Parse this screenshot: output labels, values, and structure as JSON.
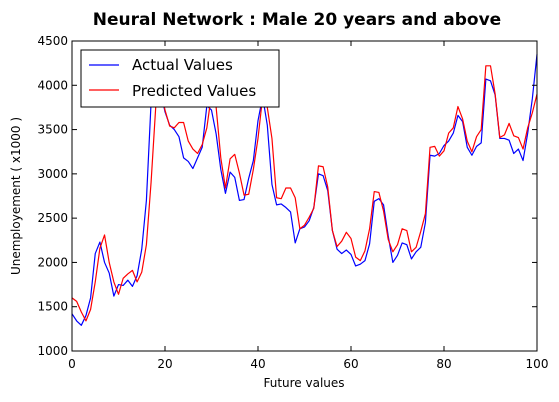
{
  "chart_data": {
    "type": "line",
    "title": "Neural Network : Male 20 years and above",
    "xlabel": "Future values",
    "ylabel": "Unemployement ( x1000 )",
    "xlim": [
      0,
      100
    ],
    "ylim": [
      1000,
      4500
    ],
    "x_ticks": [
      0,
      20,
      40,
      60,
      80,
      100
    ],
    "y_ticks": [
      1000,
      1500,
      2000,
      2500,
      3000,
      3500,
      4000,
      4500
    ],
    "x_tick_labels": [
      "0",
      "20",
      "40",
      "60",
      "80",
      "100"
    ],
    "y_tick_labels": [
      "1000",
      "1500",
      "2000",
      "2500",
      "3000",
      "3500",
      "4000",
      "4500"
    ],
    "grid": false,
    "legend_position": "top-left",
    "x": [
      0,
      1,
      2,
      3,
      4,
      5,
      6,
      7,
      8,
      9,
      10,
      11,
      12,
      13,
      14,
      15,
      16,
      17,
      18,
      19,
      20,
      21,
      22,
      23,
      24,
      25,
      26,
      27,
      28,
      29,
      30,
      31,
      32,
      33,
      34,
      35,
      36,
      37,
      38,
      39,
      40,
      41,
      42,
      43,
      44,
      45,
      46,
      47,
      48,
      49,
      50,
      51,
      52,
      53,
      54,
      55,
      56,
      57,
      58,
      59,
      60,
      61,
      62,
      63,
      64,
      65,
      66,
      67,
      68,
      69,
      70,
      71,
      72,
      73,
      74,
      75,
      76,
      77,
      78,
      79,
      80,
      81,
      82,
      83,
      84,
      85,
      86,
      87,
      88,
      89,
      90,
      91,
      92,
      93,
      94,
      95,
      96,
      97,
      98,
      99,
      100
    ],
    "series": [
      {
        "name": "Actual Values",
        "color": "#0000ff",
        "values": [
          1420,
          1340,
          1290,
          1400,
          1600,
          2100,
          2230,
          2000,
          1880,
          1620,
          1750,
          1740,
          1800,
          1730,
          1850,
          2150,
          2700,
          3800,
          4050,
          3950,
          3700,
          3550,
          3500,
          3420,
          3180,
          3140,
          3060,
          3180,
          3300,
          3770,
          3720,
          3450,
          3050,
          2780,
          3020,
          2960,
          2700,
          2710,
          2950,
          3150,
          3600,
          3870,
          3550,
          2880,
          2650,
          2660,
          2620,
          2570,
          2220,
          2380,
          2400,
          2470,
          2620,
          3000,
          2980,
          2810,
          2360,
          2150,
          2100,
          2140,
          2090,
          1960,
          1980,
          2020,
          2210,
          2690,
          2720,
          2650,
          2300,
          2000,
          2080,
          2220,
          2200,
          2040,
          2120,
          2170,
          2450,
          3210,
          3200,
          3230,
          3320,
          3370,
          3460,
          3660,
          3590,
          3300,
          3210,
          3310,
          3350,
          4070,
          4050,
          3890,
          3400,
          3400,
          3380,
          3230,
          3280,
          3150,
          3460,
          3850,
          4350
        ]
      },
      {
        "name": "Predicted Values",
        "color": "#ff0000",
        "values": [
          1600,
          1560,
          1440,
          1340,
          1470,
          1780,
          2160,
          2310,
          2000,
          1780,
          1640,
          1820,
          1870,
          1910,
          1780,
          1890,
          2200,
          2900,
          3750,
          4000,
          3720,
          3540,
          3520,
          3580,
          3580,
          3370,
          3280,
          3230,
          3330,
          3520,
          3900,
          3750,
          3180,
          2840,
          3170,
          3220,
          3010,
          2760,
          2770,
          3050,
          3400,
          3870,
          3750,
          3400,
          2730,
          2720,
          2840,
          2840,
          2730,
          2380,
          2420,
          2510,
          2610,
          3090,
          3080,
          2850,
          2360,
          2180,
          2240,
          2340,
          2270,
          2060,
          2020,
          2130,
          2380,
          2800,
          2790,
          2580,
          2260,
          2120,
          2200,
          2380,
          2360,
          2120,
          2170,
          2350,
          2550,
          3300,
          3310,
          3200,
          3260,
          3460,
          3520,
          3760,
          3620,
          3370,
          3250,
          3420,
          3500,
          4220,
          4220,
          3900,
          3410,
          3440,
          3570,
          3430,
          3410,
          3280,
          3520,
          3690,
          3900
        ]
      }
    ]
  }
}
